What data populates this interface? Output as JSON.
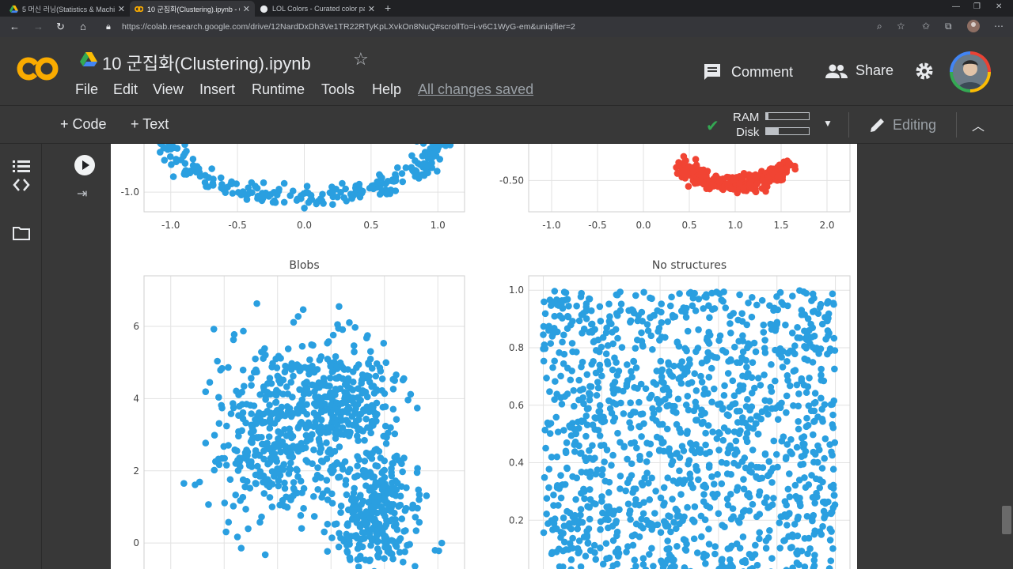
{
  "browser": {
    "tabs": [
      {
        "title": "5 머신 러닝(Statistics & Machine",
        "active": false
      },
      {
        "title": "10 군집화(Clustering).ipynb - Co",
        "active": true
      },
      {
        "title": "LOL Colors - Curated color palet",
        "active": false
      }
    ],
    "url": "https://colab.research.google.com/drive/12NardDxDh3Ve1TR22RTyKpLXvkOn8NuQ#scrollTo=i-v6C1WyG-em&uniqifier=2"
  },
  "header": {
    "logo_text": "CO",
    "title": "10 군집화(Clustering).ipynb",
    "menu": [
      "File",
      "Edit",
      "View",
      "Insert",
      "Runtime",
      "Tools",
      "Help"
    ],
    "save_status": "All changes saved",
    "comment_label": "Comment",
    "share_label": "Share"
  },
  "toolbar": {
    "code_label": "+ Code",
    "text_label": "+ Text",
    "ram_label": "RAM",
    "disk_label": "Disk",
    "ram_level": 0.05,
    "disk_level": 0.3,
    "editing_label": "Editing"
  },
  "colors": {
    "blue": "#2a9fe0",
    "red": "#f14433",
    "chrome_bg": "#383838",
    "colab_orange": "#f9ab00"
  },
  "chart_data": [
    {
      "type": "scatter",
      "title": "",
      "partial": "bottom of moons plot",
      "xticks": [
        "-1.0",
        "-0.5",
        "0.0",
        "0.5",
        "1.0"
      ],
      "yticks": [
        "-1.0"
      ],
      "series": [
        {
          "color": "#2a9fe0",
          "shape": "arc (lower half circle)",
          "center_x": 0.0,
          "center_y": -0.5,
          "radius": 0.5
        }
      ]
    },
    {
      "type": "scatter",
      "title": "",
      "partial": "bottom of moons plot",
      "xticks": [
        "-1.0",
        "-0.5",
        "0.0",
        "0.5",
        "1.0",
        "1.5",
        "2.0"
      ],
      "yticks": [
        "-0.50"
      ],
      "series": [
        {
          "color": "#f14433",
          "shape": "arc (lower half circle)",
          "center_x": 1.0,
          "center_y": -0.4,
          "radius": 0.5
        }
      ]
    },
    {
      "type": "scatter",
      "title": "Blobs",
      "xlim": [
        -3,
        9
      ],
      "ylim": [
        -1.2,
        7.4
      ],
      "yticks": [
        "0",
        "2",
        "4",
        "6"
      ],
      "series": [
        {
          "color": "#2a9fe0",
          "distribution": "gaussian blob",
          "center": [
            2.0,
            3.0
          ],
          "spread": 1.2
        },
        {
          "color": "#2a9fe0",
          "distribution": "gaussian blob",
          "center": [
            4.6,
            4.0
          ],
          "spread": 0.9
        },
        {
          "color": "#2a9fe0",
          "distribution": "gaussian blob",
          "center": [
            5.8,
            0.8
          ],
          "spread": 0.8
        }
      ]
    },
    {
      "type": "scatter",
      "title": "No structures",
      "xlim": [
        -0.05,
        1.05
      ],
      "ylim": [
        0.0,
        1.05
      ],
      "yticks": [
        "0.2",
        "0.4",
        "0.6",
        "0.8",
        "1.0"
      ],
      "series": [
        {
          "color": "#2a9fe0",
          "distribution": "uniform",
          "x_range": [
            0,
            1
          ],
          "y_range": [
            0,
            1
          ]
        }
      ]
    }
  ]
}
